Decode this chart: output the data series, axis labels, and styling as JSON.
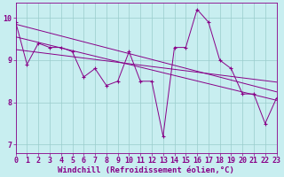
{
  "xlabel": "Windchill (Refroidissement éolien,°C)",
  "bg_color": "#c8eef0",
  "line_color": "#880088",
  "xlim": [
    0,
    23
  ],
  "ylim": [
    6.8,
    10.35
  ],
  "yticks": [
    7,
    8,
    9,
    10
  ],
  "xticks": [
    0,
    1,
    2,
    3,
    4,
    5,
    6,
    7,
    8,
    9,
    10,
    11,
    12,
    13,
    14,
    15,
    16,
    17,
    18,
    19,
    20,
    21,
    22,
    23
  ],
  "main_series": [
    9.9,
    8.9,
    9.4,
    9.3,
    9.3,
    9.2,
    8.6,
    8.8,
    8.4,
    8.5,
    9.2,
    8.5,
    8.5,
    7.2,
    9.3,
    9.3,
    10.2,
    9.9,
    9.0,
    8.8,
    8.2,
    8.2,
    7.5,
    8.1
  ],
  "reg_line1_ends": [
    9.85,
    8.25
  ],
  "reg_line2_ends": [
    9.55,
    8.05
  ],
  "reg_line3_ends": [
    9.25,
    8.48
  ],
  "grid_color": "#99cccc",
  "tick_fontsize": 6,
  "label_fontsize": 6.5,
  "figsize": [
    3.2,
    2.0
  ],
  "dpi": 100
}
